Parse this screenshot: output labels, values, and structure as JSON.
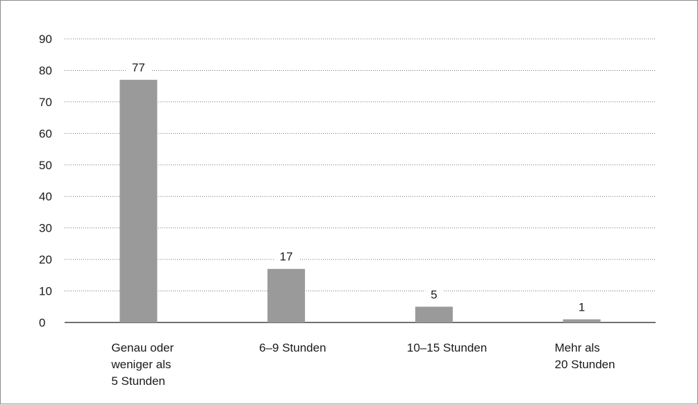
{
  "chart_data": {
    "type": "bar",
    "categories": [
      [
        "Genau oder",
        "weniger als",
        "5 Stunden"
      ],
      [
        "6–9 Stunden"
      ],
      [
        "10–15 Stunden"
      ],
      [
        "Mehr als",
        "20 Stunden"
      ]
    ],
    "values": [
      77,
      17,
      5,
      1
    ],
    "data_labels": [
      "77",
      "17",
      "5",
      "1"
    ],
    "ylim": [
      0,
      90
    ],
    "yticks": [
      0,
      10,
      20,
      30,
      40,
      50,
      60,
      70,
      80,
      90
    ],
    "title": "",
    "xlabel": "",
    "ylabel": "",
    "grid": true,
    "grid_style": "dotted",
    "legend": false,
    "bar_color": "#9a9a9a",
    "axis_color": "#1a1a1a",
    "grid_color": "#6f6f6f"
  }
}
